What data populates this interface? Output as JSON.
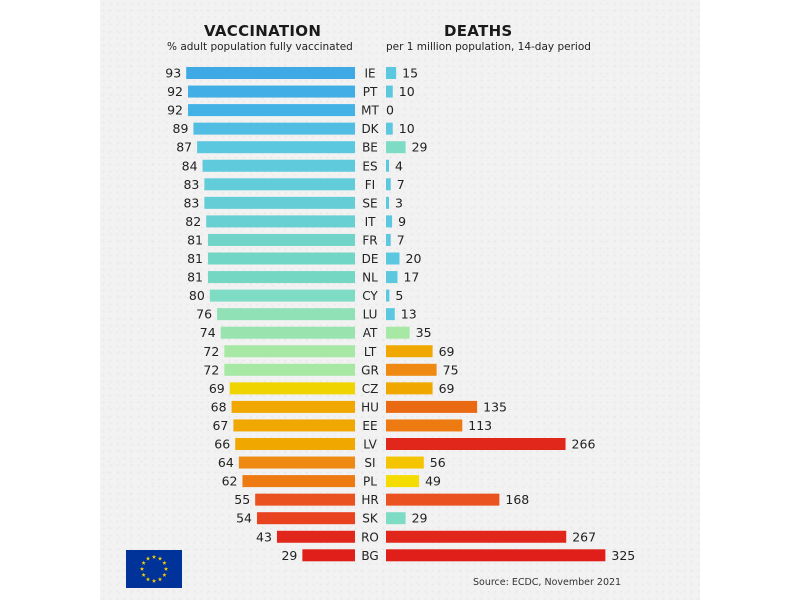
{
  "headers": {
    "vaccination_title": "VACCINATION",
    "vaccination_subtitle": "% adult population fully vaccinated",
    "deaths_title": "DEATHS",
    "deaths_subtitle": "per 1 million population, 14-day period"
  },
  "source": "Source: ECDC, November 2021",
  "flag": {
    "name": "eu-flag",
    "background": "#003399",
    "stars": "#FFCC00"
  },
  "colors": {
    "blue": "#3fa9e6",
    "light_blue": "#5cc8df",
    "teal": "#7fdcc4",
    "light_green": "#a6e8a4",
    "yellow": "#f0d400",
    "amber": "#f0a800",
    "orange": "#ee7a12",
    "red_orange": "#ea5220",
    "red": "#e1261c"
  },
  "chart_data": {
    "type": "bar",
    "categories": [
      "IE",
      "PT",
      "MT",
      "DK",
      "BE",
      "ES",
      "FI",
      "SE",
      "IT",
      "FR",
      "DE",
      "NL",
      "CY",
      "LU",
      "AT",
      "LT",
      "GR",
      "CZ",
      "HU",
      "EE",
      "LV",
      "SI",
      "PL",
      "HR",
      "SK",
      "RO",
      "BG"
    ],
    "series": [
      {
        "name": "VACCINATION",
        "values": [
          93,
          92,
          92,
          89,
          87,
          84,
          83,
          83,
          82,
          81,
          81,
          81,
          80,
          76,
          74,
          72,
          72,
          69,
          68,
          67,
          66,
          64,
          62,
          55,
          54,
          43,
          29
        ],
        "colors": [
          "#3fa9e6",
          "#42aee6",
          "#45b2e6",
          "#52bde3",
          "#5cc8df",
          "#5fcadc",
          "#62ccd9",
          "#65cdd6",
          "#68cfd2",
          "#70d5c8",
          "#72d6c6",
          "#74d7c4",
          "#7fdcc4",
          "#90e1b5",
          "#98e3ae",
          "#a6e8a4",
          "#a6e8a4",
          "#f0d400",
          "#f0a800",
          "#f0a800",
          "#f0a800",
          "#ee8a12",
          "#ee7a12",
          "#ea5220",
          "#e8421e",
          "#e1261c",
          "#e01e1a"
        ]
      },
      {
        "name": "DEATHS",
        "values": [
          15,
          10,
          0,
          10,
          29,
          4,
          7,
          3,
          9,
          7,
          20,
          17,
          5,
          13,
          35,
          69,
          75,
          69,
          135,
          113,
          266,
          56,
          49,
          168,
          29,
          267,
          325
        ],
        "colors": [
          "#5cc8df",
          "#5cc8df",
          "#5cc8df",
          "#5cc8df",
          "#7fdcc4",
          "#5cc8df",
          "#5cc8df",
          "#5cc8df",
          "#5cc8df",
          "#5cc8df",
          "#5cc8df",
          "#5cc8df",
          "#5cc8df",
          "#5cc8df",
          "#a6e8a4",
          "#f0a800",
          "#ee8a12",
          "#f0a800",
          "#ea6a14",
          "#ee7a12",
          "#e1261c",
          "#f5c400",
          "#f5dc00",
          "#ea5220",
          "#7fdcc4",
          "#e1261c",
          "#e01e1a"
        ]
      }
    ]
  }
}
